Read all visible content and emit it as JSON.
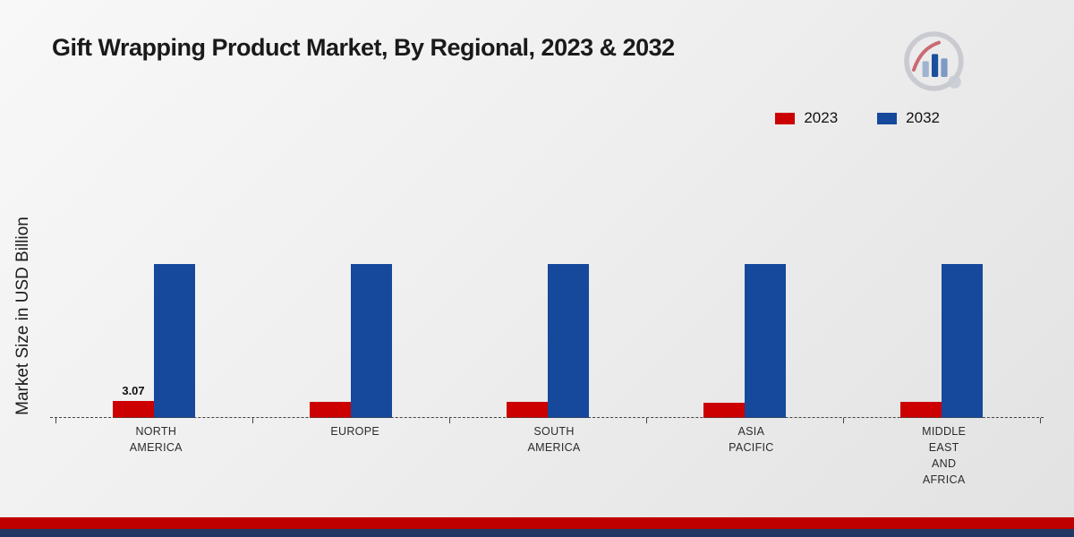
{
  "page": {
    "title": "Gift Wrapping Product Market, By Regional, 2023 & 2032"
  },
  "legend": [
    {
      "label": "2023",
      "color": "#cc0001"
    },
    {
      "label": "2032",
      "color": "#16489c"
    }
  ],
  "chart_data": {
    "type": "bar",
    "title": "Gift Wrapping Product Market, By Regional, 2023 & 2032",
    "ylabel": "Market Size in USD Billion",
    "categories": [
      "NORTH\nAMERICA",
      "EUROPE",
      "SOUTH\nAMERICA",
      "ASIA\nPACIFIC",
      "MIDDLE\nEAST\nAND\nAFRICA"
    ],
    "series": [
      {
        "name": "2023",
        "color": "#cc0001",
        "values": [
          3.07,
          2.9,
          2.95,
          2.8,
          2.95
        ],
        "labels": [
          "3.07",
          "",
          "",
          "",
          ""
        ]
      },
      {
        "name": "2032",
        "color": "#16489c",
        "values": [
          27.8,
          27.8,
          27.8,
          27.8,
          27.8
        ],
        "labels": [
          "",
          "",
          "",
          "",
          ""
        ]
      }
    ],
    "ylim": [
      0,
      30
    ],
    "baseline_style": "dashed",
    "legend_position": "top-right",
    "grid": false
  },
  "footer": {
    "red_band_color": "#c00000",
    "navy_band_color": "#1f3864"
  }
}
